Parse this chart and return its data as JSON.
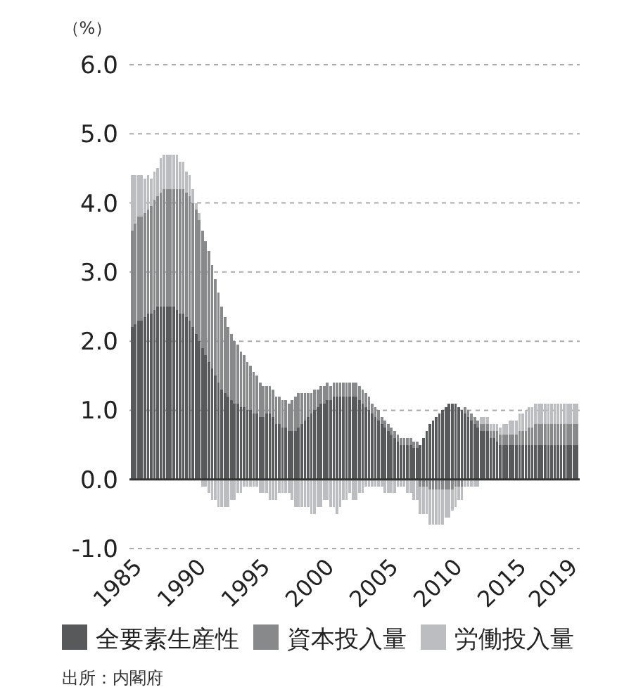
{
  "chart_data": {
    "type": "bar",
    "stacked": true,
    "ylabel": "（%）",
    "x": [
      1985,
      1985.25,
      1985.5,
      1985.75,
      1986,
      1986.25,
      1986.5,
      1986.75,
      1987,
      1987.25,
      1987.5,
      1987.75,
      1988,
      1988.25,
      1988.5,
      1988.75,
      1989,
      1989.25,
      1989.5,
      1989.75,
      1990,
      1990.25,
      1990.5,
      1990.75,
      1991,
      1991.25,
      1991.5,
      1991.75,
      1992,
      1992.25,
      1992.5,
      1992.75,
      1993,
      1993.25,
      1993.5,
      1993.75,
      1994,
      1994.25,
      1994.5,
      1994.75,
      1995,
      1995.25,
      1995.5,
      1995.75,
      1996,
      1996.25,
      1996.5,
      1996.75,
      1997,
      1997.25,
      1997.5,
      1997.75,
      1998,
      1998.25,
      1998.5,
      1998.75,
      1999,
      1999.25,
      1999.5,
      1999.75,
      2000,
      2000.25,
      2000.5,
      2000.75,
      2001,
      2001.25,
      2001.5,
      2001.75,
      2002,
      2002.25,
      2002.5,
      2002.75,
      2003,
      2003.25,
      2003.5,
      2003.75,
      2004,
      2004.25,
      2004.5,
      2004.75,
      2005,
      2005.25,
      2005.5,
      2005.75,
      2006,
      2006.25,
      2006.5,
      2006.75,
      2007,
      2007.25,
      2007.5,
      2007.75,
      2008,
      2008.25,
      2008.5,
      2008.75,
      2009,
      2009.25,
      2009.5,
      2009.75,
      2010,
      2010.25,
      2010.5,
      2010.75,
      2011,
      2011.25,
      2011.5,
      2011.75,
      2012,
      2012.25,
      2012.5,
      2012.75,
      2013,
      2013.25,
      2013.5,
      2013.75,
      2014,
      2014.25,
      2014.5,
      2014.75,
      2015,
      2015.25,
      2015.5,
      2015.75,
      2016,
      2016.25,
      2016.5,
      2016.75,
      2017,
      2017.25,
      2017.5,
      2017.75,
      2018,
      2018.25,
      2018.5,
      2018.75,
      2019,
      2019.25,
      2019.5,
      2019.75
    ],
    "xlim": [
      1984.8,
      2019.95
    ],
    "xticks": [
      1985,
      1990,
      1995,
      2000,
      2005,
      2010,
      2015,
      2019
    ],
    "ylim": [
      -1,
      6
    ],
    "yticks": [
      {
        "value": -1,
        "label": "-1.0"
      },
      {
        "value": 0,
        "label": "0.0"
      },
      {
        "value": 1,
        "label": "1.0"
      },
      {
        "value": 2,
        "label": "2.0"
      },
      {
        "value": 3,
        "label": "3.0"
      },
      {
        "value": 4,
        "label": "4.0"
      },
      {
        "value": 5,
        "label": "5.0"
      },
      {
        "value": 6,
        "label": "6.0"
      }
    ],
    "grid": "y",
    "legend": "bottom",
    "annotations": [
      "出所：内閣府"
    ],
    "series": [
      {
        "name": "全要素生産性",
        "color": "#58595b",
        "values": [
          2.2,
          2.25,
          2.3,
          2.3,
          2.35,
          2.4,
          2.4,
          2.45,
          2.5,
          2.5,
          2.5,
          2.5,
          2.5,
          2.5,
          2.45,
          2.4,
          2.4,
          2.35,
          2.3,
          2.2,
          2.1,
          2.0,
          1.9,
          1.8,
          1.7,
          1.6,
          1.5,
          1.4,
          1.3,
          1.25,
          1.2,
          1.15,
          1.1,
          1.1,
          1.05,
          1.05,
          1.0,
          1.0,
          0.95,
          0.95,
          0.9,
          0.9,
          0.95,
          0.95,
          0.9,
          0.8,
          0.8,
          0.75,
          0.75,
          0.7,
          0.7,
          0.7,
          0.75,
          0.8,
          0.85,
          0.9,
          0.95,
          1.0,
          1.05,
          1.1,
          1.1,
          1.15,
          1.15,
          1.2,
          1.2,
          1.2,
          1.2,
          1.2,
          1.2,
          1.2,
          1.2,
          1.15,
          1.1,
          1.05,
          1.0,
          0.95,
          0.9,
          0.85,
          0.8,
          0.75,
          0.7,
          0.65,
          0.6,
          0.55,
          0.5,
          0.5,
          0.5,
          0.5,
          0.45,
          0.45,
          0.5,
          0.6,
          0.7,
          0.8,
          0.85,
          0.9,
          0.95,
          1.0,
          1.05,
          1.1,
          1.1,
          1.1,
          1.05,
          1.0,
          0.95,
          0.9,
          0.85,
          0.8,
          0.75,
          0.7,
          0.7,
          0.7,
          0.6,
          0.6,
          0.55,
          0.5,
          0.5,
          0.5,
          0.5,
          0.5,
          0.5,
          0.5,
          0.5,
          0.5,
          0.5,
          0.5,
          0.5,
          0.5,
          0.5,
          0.5,
          0.5,
          0.5,
          0.5,
          0.5,
          0.5,
          0.5,
          0.5,
          0.5,
          0.5,
          0.5
        ]
      },
      {
        "name": "資本投入量",
        "color": "#88898b",
        "values": [
          1.4,
          1.45,
          1.5,
          1.5,
          1.5,
          1.5,
          1.55,
          1.6,
          1.6,
          1.65,
          1.7,
          1.7,
          1.7,
          1.7,
          1.75,
          1.8,
          1.8,
          1.8,
          1.8,
          1.8,
          1.8,
          1.75,
          1.7,
          1.65,
          1.6,
          1.5,
          1.4,
          1.3,
          1.2,
          1.1,
          1.0,
          0.95,
          0.9,
          0.85,
          0.8,
          0.75,
          0.7,
          0.65,
          0.6,
          0.55,
          0.5,
          0.45,
          0.4,
          0.4,
          0.4,
          0.4,
          0.4,
          0.4,
          0.4,
          0.4,
          0.45,
          0.5,
          0.5,
          0.45,
          0.4,
          0.35,
          0.3,
          0.3,
          0.25,
          0.25,
          0.25,
          0.25,
          0.2,
          0.2,
          0.2,
          0.2,
          0.2,
          0.2,
          0.2,
          0.2,
          0.2,
          0.2,
          0.2,
          0.2,
          0.2,
          0.15,
          0.15,
          0.15,
          0.1,
          0.1,
          0.1,
          0.1,
          0.1,
          0.1,
          0.1,
          0.1,
          0.1,
          0.1,
          0.1,
          0.1,
          -0.1,
          -0.1,
          -0.1,
          -0.15,
          -0.15,
          -0.15,
          -0.15,
          -0.15,
          -0.15,
          -0.15,
          -0.15,
          -0.1,
          -0.1,
          -0.1,
          0.1,
          0.1,
          0.1,
          0.1,
          0.1,
          0.1,
          0.1,
          0.1,
          0.1,
          0.1,
          0.15,
          0.15,
          0.15,
          0.15,
          0.15,
          0.15,
          0.15,
          0.2,
          0.2,
          0.2,
          0.25,
          0.25,
          0.3,
          0.3,
          0.3,
          0.3,
          0.3,
          0.3,
          0.3,
          0.3,
          0.3,
          0.3,
          0.3,
          0.3,
          0.3,
          0.3
        ]
      },
      {
        "name": "労働投入量",
        "color": "#bcbdc0",
        "values": [
          0.8,
          0.7,
          0.6,
          0.6,
          0.5,
          0.5,
          0.4,
          0.4,
          0.4,
          0.5,
          0.5,
          0.5,
          0.5,
          0.5,
          0.5,
          0.4,
          0.4,
          0.3,
          0.3,
          0.2,
          0.1,
          0.1,
          -0.1,
          -0.1,
          -0.2,
          -0.3,
          -0.3,
          -0.4,
          -0.4,
          -0.4,
          -0.4,
          -0.3,
          -0.3,
          -0.2,
          -0.2,
          -0.1,
          -0.1,
          -0.1,
          -0.1,
          -0.1,
          -0.2,
          -0.2,
          -0.2,
          -0.3,
          -0.3,
          -0.3,
          -0.2,
          -0.2,
          -0.2,
          -0.2,
          -0.3,
          -0.4,
          -0.4,
          -0.4,
          -0.4,
          -0.4,
          -0.5,
          -0.5,
          -0.4,
          -0.4,
          -0.3,
          -0.3,
          -0.4,
          -0.4,
          -0.5,
          -0.4,
          -0.3,
          -0.3,
          -0.2,
          -0.3,
          -0.3,
          -0.2,
          -0.2,
          -0.1,
          -0.1,
          -0.1,
          -0.1,
          -0.1,
          -0.1,
          -0.2,
          -0.2,
          -0.2,
          -0.2,
          -0.1,
          -0.1,
          -0.1,
          -0.2,
          -0.2,
          -0.3,
          -0.3,
          -0.4,
          -0.4,
          -0.4,
          -0.5,
          -0.5,
          -0.5,
          -0.5,
          -0.5,
          -0.4,
          -0.4,
          -0.3,
          -0.3,
          -0.2,
          -0.2,
          -0.1,
          -0.1,
          -0.1,
          -0.1,
          -0.1,
          0.1,
          0.1,
          0.1,
          0.1,
          0.1,
          0.1,
          0.1,
          0.15,
          0.15,
          0.2,
          0.2,
          0.2,
          0.25,
          0.25,
          0.3,
          0.3,
          0.3,
          0.3,
          0.3,
          0.3,
          0.3,
          0.3,
          0.3,
          0.3,
          0.3,
          0.3,
          0.3,
          0.3,
          0.3,
          0.3,
          0.3
        ]
      }
    ]
  }
}
